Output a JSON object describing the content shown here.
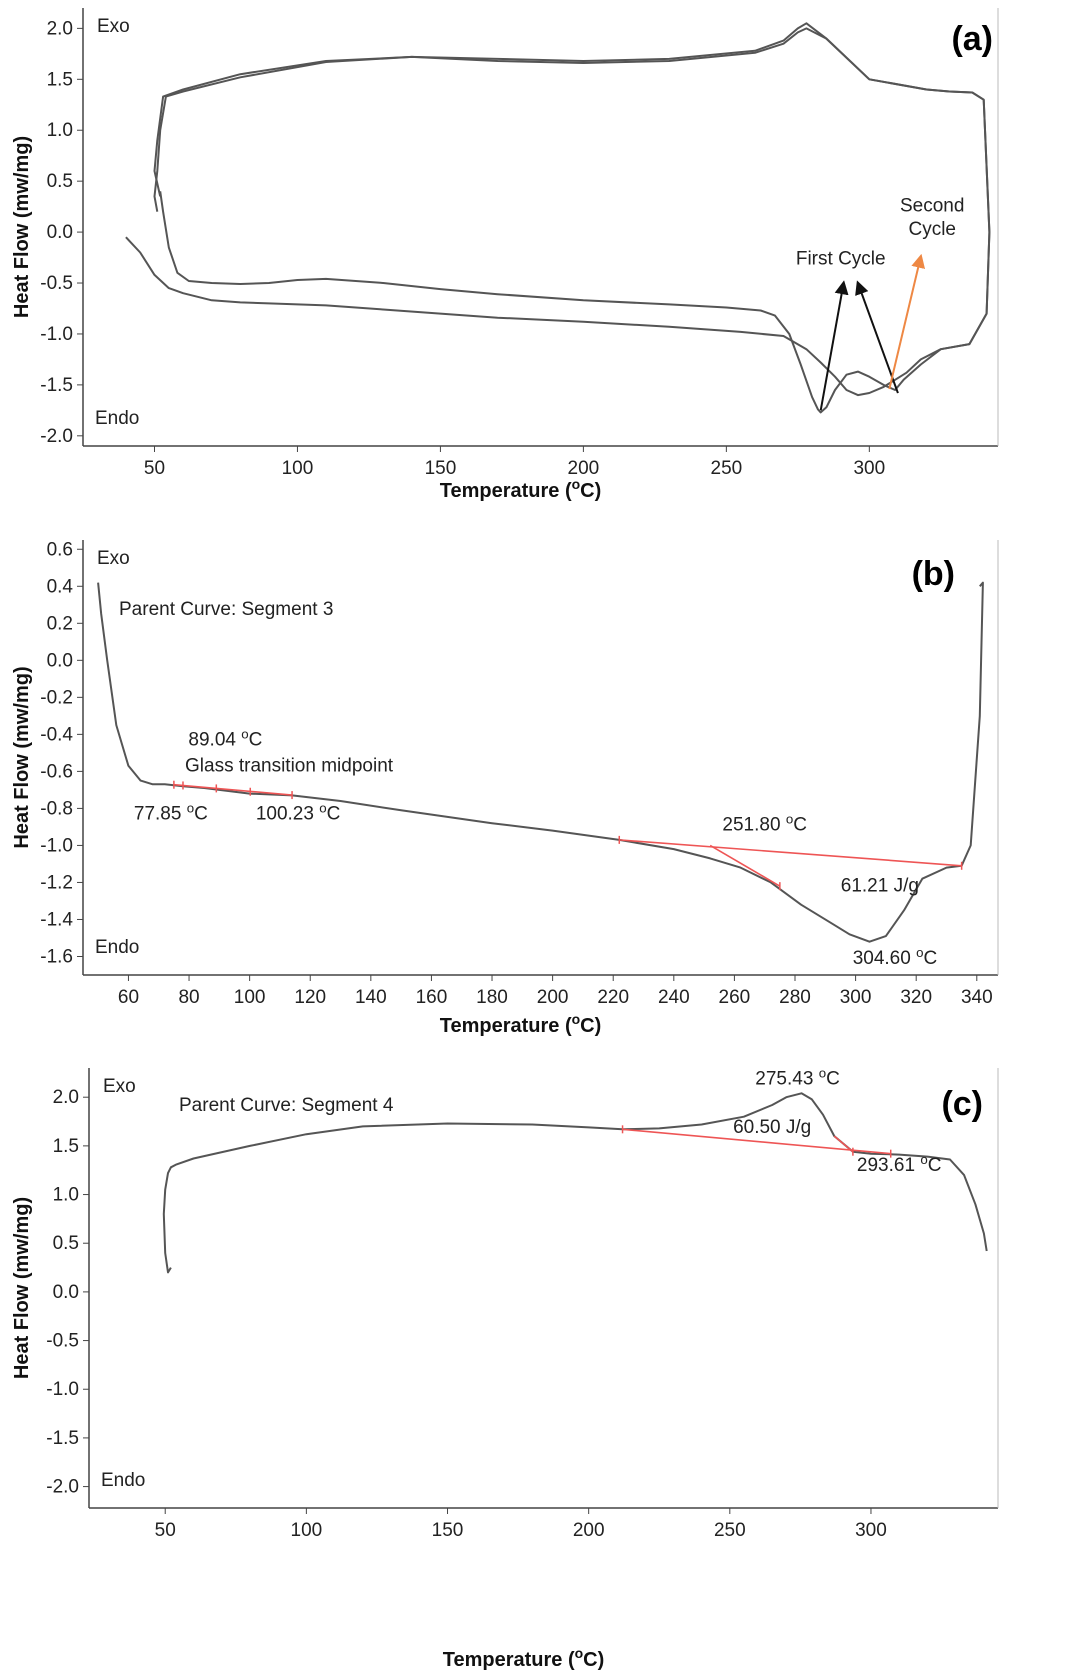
{
  "colors": {
    "curve": "#555555",
    "baseline": "#ee5555",
    "arrow_black": "#111111",
    "arrow_orange": "#ee8844",
    "frame": "#444444"
  },
  "chart_data": [
    {
      "type": "line",
      "panel_label": "(a)",
      "xlabel": "Temperature (oC)",
      "ylabel": "Heat Flow (mw/mg)",
      "xlim": [
        25,
        345
      ],
      "ylim": [
        -2.1,
        2.2
      ],
      "xticks": [
        50,
        100,
        150,
        200,
        250,
        300
      ],
      "yticks": [
        2.0,
        1.5,
        1.0,
        0.5,
        0.0,
        -0.5,
        -1.0,
        -1.5,
        -2.0
      ],
      "ytick_labels": [
        "2.0",
        "1.5",
        "1.0",
        "0.5",
        "0.0",
        "-0.5",
        "-1.0",
        "-1.5",
        "-2.0"
      ],
      "grid": false,
      "corner_labels": {
        "exo": "Exo",
        "endo": "Endo"
      },
      "series": [
        {
          "x": [
            40,
            45,
            50,
            55,
            60,
            70,
            80,
            90,
            100,
            110,
            130,
            150,
            170,
            200,
            230,
            255,
            270,
            278,
            283,
            288,
            292,
            296,
            300,
            305,
            309,
            313,
            318,
            325,
            335,
            341,
            342,
            340,
            336,
            328,
            320,
            300,
            285,
            278,
            275,
            270,
            260,
            230,
            200,
            170,
            140,
            110,
            80,
            60,
            53,
            51,
            50,
            52
          ],
          "y": [
            -0.05,
            -0.2,
            -0.42,
            -0.55,
            -0.6,
            -0.67,
            -0.69,
            -0.7,
            -0.71,
            -0.72,
            -0.76,
            -0.8,
            -0.84,
            -0.88,
            -0.93,
            -0.98,
            -1.02,
            -1.15,
            -1.28,
            -1.42,
            -1.55,
            -1.6,
            -1.58,
            -1.52,
            -1.45,
            -1.38,
            -1.25,
            -1.15,
            -1.1,
            -0.8,
            0.0,
            1.3,
            1.37,
            1.38,
            1.4,
            1.5,
            1.9,
            2.05,
            2.0,
            1.88,
            1.78,
            1.7,
            1.68,
            1.7,
            1.72,
            1.68,
            1.55,
            1.4,
            1.33,
            0.9,
            0.6,
            0.35
          ]
        },
        {
          "x": [
            52,
            53,
            55,
            58,
            62,
            70,
            80,
            90,
            100,
            110,
            130,
            150,
            170,
            200,
            230,
            250,
            262,
            267,
            272,
            276,
            280,
            282,
            283,
            285,
            288,
            292,
            296,
            300,
            305,
            309,
            312,
            318,
            325,
            335,
            341,
            342,
            340,
            336,
            328,
            320,
            300,
            285,
            278,
            275,
            270,
            260,
            230,
            200,
            170,
            140,
            110,
            80,
            60,
            54,
            52,
            51,
            50,
            51
          ],
          "y": [
            0.4,
            0.2,
            -0.15,
            -0.4,
            -0.48,
            -0.5,
            -0.51,
            -0.5,
            -0.47,
            -0.46,
            -0.5,
            -0.56,
            -0.61,
            -0.67,
            -0.71,
            -0.74,
            -0.77,
            -0.82,
            -1.0,
            -1.3,
            -1.62,
            -1.74,
            -1.77,
            -1.72,
            -1.55,
            -1.4,
            -1.37,
            -1.42,
            -1.5,
            -1.55,
            -1.45,
            -1.3,
            -1.15,
            -1.1,
            -0.8,
            0.0,
            1.3,
            1.37,
            1.38,
            1.4,
            1.5,
            1.9,
            2.0,
            1.96,
            1.85,
            1.76,
            1.68,
            1.66,
            1.68,
            1.72,
            1.67,
            1.52,
            1.38,
            1.33,
            1.0,
            0.6,
            0.35,
            0.2
          ]
        }
      ],
      "annotations": [
        {
          "text": "First Cycle",
          "x": 290,
          "y": -0.32
        },
        {
          "text": "Second",
          "x": 322,
          "y": 0.2
        },
        {
          "text": "Cycle",
          "x": 322,
          "y": -0.03
        }
      ],
      "arrows": [
        {
          "from": [
            283,
            -1.75
          ],
          "to": [
            291,
            -0.5
          ],
          "color": "black"
        },
        {
          "from": [
            310,
            -1.58
          ],
          "to": [
            296,
            -0.5
          ],
          "color": "black"
        },
        {
          "from": [
            307,
            -1.54
          ],
          "to": [
            318,
            -0.24
          ],
          "color": "orange"
        }
      ]
    },
    {
      "type": "line",
      "panel_label": "(b)",
      "xlabel": "Temperature (oC)",
      "ylabel": "Heat Flow (mw/mg)",
      "xlim": [
        45,
        347
      ],
      "ylim": [
        -1.7,
        0.65
      ],
      "xticks": [
        60,
        80,
        100,
        120,
        140,
        160,
        180,
        200,
        220,
        240,
        260,
        280,
        300,
        320,
        340
      ],
      "yticks": [
        0.6,
        0.4,
        0.2,
        0.0,
        -0.2,
        -0.4,
        -0.6,
        -0.8,
        -1.0,
        -1.2,
        -1.4,
        -1.6
      ],
      "ytick_labels": [
        "0.6",
        "0.4",
        "0.2",
        "0.0",
        "-0.2",
        "-0.4",
        "-0.6",
        "-0.8",
        "-1.0",
        "-1.2",
        "-1.4",
        "-1.6"
      ],
      "grid": false,
      "corner_labels": {
        "exo": "Exo",
        "endo": "Endo"
      },
      "segment_label": "Parent Curve: Segment 3",
      "series": [
        {
          "x": [
            50,
            51,
            53,
            56,
            60,
            64,
            68,
            72,
            78,
            85,
            90,
            100,
            114,
            130,
            150,
            180,
            200,
            222,
            240,
            252,
            262,
            272,
            282,
            292,
            298,
            304.6,
            310,
            316,
            322,
            330,
            335,
            338,
            341,
            342,
            341
          ],
          "y": [
            0.42,
            0.25,
            0.0,
            -0.35,
            -0.57,
            -0.65,
            -0.67,
            -0.67,
            -0.68,
            -0.69,
            -0.7,
            -0.72,
            -0.73,
            -0.76,
            -0.81,
            -0.88,
            -0.92,
            -0.97,
            -1.02,
            -1.07,
            -1.12,
            -1.2,
            -1.32,
            -1.42,
            -1.48,
            -1.52,
            -1.49,
            -1.35,
            -1.18,
            -1.12,
            -1.11,
            -1.0,
            -0.3,
            0.42,
            0.4
          ]
        }
      ],
      "baselines": [
        {
          "x": [
            75,
            114
          ],
          "y": [
            -0.672,
            -0.728
          ]
        },
        {
          "x": [
            222,
            335
          ],
          "y": [
            -0.97,
            -1.11
          ]
        },
        {
          "x": [
            252,
            275
          ],
          "y": [
            -1.0,
            -1.22
          ]
        }
      ],
      "markers": [
        {
          "x": 75,
          "y": -0.672
        },
        {
          "x": 78,
          "y": -0.676
        },
        {
          "x": 89,
          "y": -0.692
        },
        {
          "x": 100.2,
          "y": -0.71
        },
        {
          "x": 114,
          "y": -0.728
        },
        {
          "x": 222,
          "y": -0.97
        },
        {
          "x": 275,
          "y": -1.22
        },
        {
          "x": 335,
          "y": -1.11
        }
      ],
      "annotations": [
        {
          "text": "89.04 oC",
          "x": 92,
          "y": -0.46
        },
        {
          "text": "Glass transition midpoint",
          "x": 113,
          "y": -0.6
        },
        {
          "text": "77.85 oC",
          "x": 74,
          "y": -0.86
        },
        {
          "text": "100.23 oC",
          "x": 116,
          "y": -0.86
        },
        {
          "text": "251.80 oC",
          "x": 270,
          "y": -0.92
        },
        {
          "text": "61.21 J/g",
          "x": 308,
          "y": -1.25
        },
        {
          "text": "304.60 oC",
          "x": 313,
          "y": -1.64
        }
      ]
    },
    {
      "type": "line",
      "panel_label": "(c)",
      "xlabel": "Temperature (oC)",
      "ylabel": "Heat Flow (mw/mg)",
      "xlim": [
        23,
        345
      ],
      "ylim": [
        -2.22,
        2.3
      ],
      "xticks": [
        50,
        100,
        150,
        200,
        250,
        300
      ],
      "yticks": [
        2.0,
        1.5,
        1.0,
        0.5,
        0.0,
        -0.5,
        -1.0,
        -1.5,
        -2.0
      ],
      "ytick_labels": [
        "2.0",
        "1.5",
        "1.0",
        "0.5",
        "0.0",
        "-0.5",
        "-1.0",
        "-1.5",
        "-2.0"
      ],
      "grid": false,
      "corner_labels": {
        "exo": "Exo",
        "endo": "Endo"
      },
      "segment_label": "Parent Curve: Segment 4",
      "series": [
        {
          "x": [
            52,
            51,
            50,
            49.5,
            50,
            51,
            52,
            54,
            60,
            80,
            100,
            120,
            150,
            180,
            200,
            212,
            225,
            240,
            255,
            265,
            270,
            275.4,
            279,
            283,
            287,
            293.6,
            300,
            310,
            320,
            328,
            333,
            337,
            340,
            341
          ],
          "y": [
            0.25,
            0.2,
            0.4,
            0.8,
            1.05,
            1.22,
            1.28,
            1.31,
            1.37,
            1.5,
            1.62,
            1.7,
            1.73,
            1.72,
            1.69,
            1.67,
            1.68,
            1.72,
            1.8,
            1.92,
            2.0,
            2.04,
            1.98,
            1.82,
            1.6,
            1.44,
            1.42,
            1.41,
            1.39,
            1.36,
            1.2,
            0.9,
            0.6,
            0.42
          ]
        }
      ],
      "baselines": [
        {
          "x": [
            212,
            307
          ],
          "y": [
            1.67,
            1.42
          ]
        },
        {
          "x": [
            287,
            293.6
          ],
          "y": [
            1.6,
            1.44
          ]
        }
      ],
      "markers": [
        {
          "x": 212,
          "y": 1.67
        },
        {
          "x": 293.6,
          "y": 1.44
        },
        {
          "x": 307,
          "y": 1.42
        }
      ],
      "annotations": [
        {
          "text": "275.43 oC",
          "x": 274,
          "y": 2.13
        },
        {
          "text": "60.50 J/g",
          "x": 265,
          "y": 1.63
        },
        {
          "text": "293.61 oC",
          "x": 310,
          "y": 1.24
        }
      ]
    }
  ]
}
